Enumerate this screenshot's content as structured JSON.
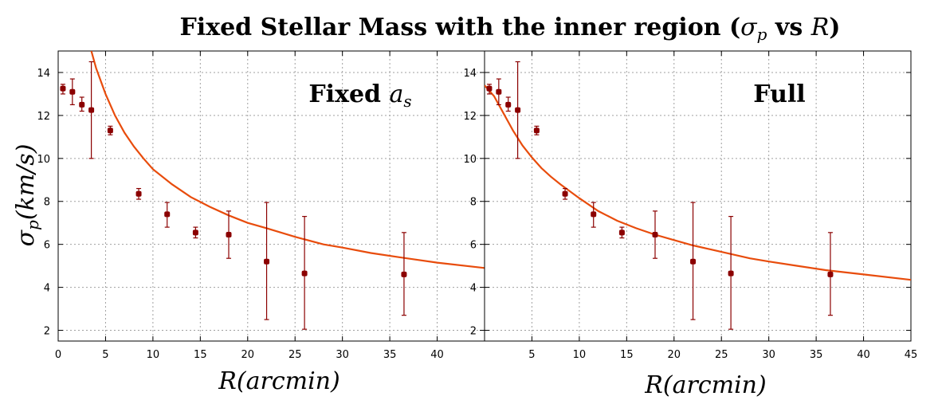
{
  "title": "Fixed Stellar Mass with the inner region (σp vs R)",
  "title_main": "Fixed Stellar Mass with the inner region (",
  "title_sigma": "σ",
  "title_sub": "p",
  "title_vs": " vs ",
  "title_R": "R",
  "title_close": ")",
  "ylabel_sigma": "σ",
  "ylabel_sub": "p",
  "ylabel_rest": "(km/s)",
  "colors": {
    "points": "#8b0000",
    "model": "#e84c0c",
    "grid": "#a0a0a0"
  },
  "chart_data": [
    {
      "type": "scatter",
      "panel_label": "Fixed ",
      "panel_label_math": "a",
      "panel_label_sub": "s",
      "xlabel": "R(arcmin)",
      "ylabel": "σp(km/s)",
      "xlim": [
        0,
        45
      ],
      "ylim": [
        1.5,
        15
      ],
      "xticks": [
        0,
        5,
        10,
        15,
        20,
        25,
        30,
        35,
        40
      ],
      "yticks": [
        2,
        4,
        6,
        8,
        10,
        12,
        14
      ],
      "grid": true,
      "series": [
        {
          "kind": "points_with_error",
          "x": [
            0.5,
            1.5,
            2.5,
            3.5,
            5.5,
            8.5,
            11.5,
            14.5,
            18.0,
            22.0,
            26.0,
            36.5
          ],
          "y": [
            13.25,
            13.1,
            12.5,
            12.25,
            11.3,
            8.35,
            7.4,
            6.55,
            6.45,
            5.2,
            4.65,
            4.6
          ],
          "y_low": [
            13.0,
            12.5,
            12.2,
            10.0,
            11.1,
            8.1,
            6.8,
            6.3,
            5.35,
            2.5,
            2.05,
            2.7
          ],
          "y_high": [
            13.45,
            13.7,
            12.85,
            14.5,
            11.5,
            8.6,
            7.95,
            6.8,
            7.55,
            7.95,
            7.3,
            6.55
          ]
        },
        {
          "kind": "model_curve",
          "x": [
            3.5,
            4,
            5,
            6,
            7,
            8,
            9,
            10,
            12,
            14,
            16,
            18,
            20,
            22,
            25,
            28,
            30,
            33,
            36,
            40,
            45
          ],
          "y": [
            15.0,
            14.2,
            13.0,
            12.0,
            11.2,
            10.55,
            10.0,
            9.5,
            8.8,
            8.2,
            7.75,
            7.35,
            7.0,
            6.75,
            6.35,
            6.0,
            5.85,
            5.6,
            5.4,
            5.15,
            4.9
          ]
        }
      ]
    },
    {
      "type": "scatter",
      "panel_label": "Full",
      "xlabel": "R(arcmin)",
      "ylabel": "σp(km/s)",
      "xlim": [
        0,
        45
      ],
      "ylim": [
        1.5,
        15
      ],
      "xticks": [
        5,
        10,
        15,
        20,
        25,
        30,
        35,
        40,
        45
      ],
      "yticks": [
        2,
        4,
        6,
        8,
        10,
        12,
        14
      ],
      "grid": true,
      "series": [
        {
          "kind": "points_with_error",
          "x": [
            0.5,
            1.5,
            2.5,
            3.5,
            5.5,
            8.5,
            11.5,
            14.5,
            18.0,
            22.0,
            26.0,
            36.5
          ],
          "y": [
            13.25,
            13.1,
            12.5,
            12.25,
            11.3,
            8.35,
            7.4,
            6.55,
            6.45,
            5.2,
            4.65,
            4.6
          ],
          "y_low": [
            13.0,
            12.5,
            12.2,
            10.0,
            11.1,
            8.1,
            6.8,
            6.3,
            5.35,
            2.5,
            2.05,
            2.7
          ],
          "y_high": [
            13.45,
            13.7,
            12.85,
            14.5,
            11.5,
            8.6,
            7.95,
            6.8,
            7.55,
            7.95,
            7.3,
            6.55
          ]
        },
        {
          "kind": "model_curve",
          "x": [
            0,
            1,
            2,
            3,
            4,
            5,
            6,
            7,
            8,
            10,
            12,
            14,
            16,
            18,
            20,
            22,
            25,
            28,
            30,
            33,
            36,
            40,
            45
          ],
          "y": [
            13.4,
            12.9,
            12.1,
            11.3,
            10.6,
            10.05,
            9.55,
            9.15,
            8.8,
            8.15,
            7.55,
            7.1,
            6.75,
            6.45,
            6.2,
            5.95,
            5.65,
            5.35,
            5.2,
            5.0,
            4.8,
            4.6,
            4.35
          ]
        }
      ]
    }
  ]
}
